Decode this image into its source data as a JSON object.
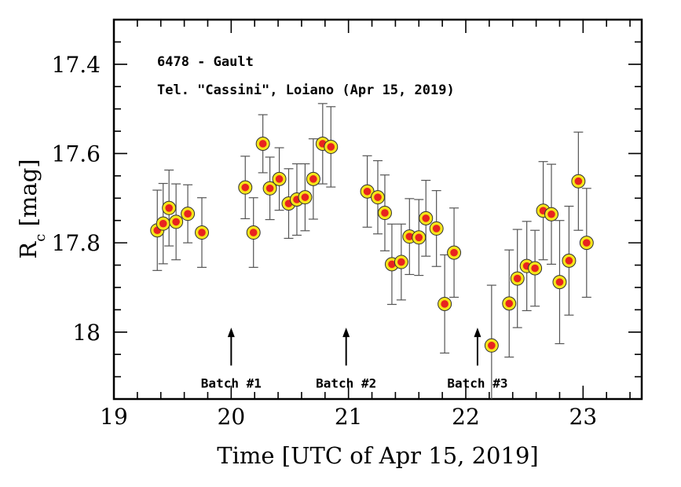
{
  "chart_data": {
    "type": "scatter",
    "title": "6478 - Gault",
    "subtitle": "Tel. \"Cassini\", Loiano (Apr 15, 2019)",
    "xlabel": "Time [UTC of Apr 15, 2019]",
    "ylabel_main": "R",
    "ylabel_sub": "c",
    "ylabel_unit": " [mag]",
    "xlim": [
      19,
      23.5
    ],
    "ylim": [
      18.15,
      17.3
    ],
    "y_inverted": true,
    "grid": false,
    "x_ticks": [
      19,
      20,
      21,
      22,
      23
    ],
    "y_ticks": [
      17.4,
      17.6,
      17.8,
      18
    ],
    "x_tick_labels": [
      "19",
      "20",
      "21",
      "22",
      "23"
    ],
    "y_tick_labels": [
      "17.4",
      "17.6",
      "17.8",
      "18"
    ],
    "marker_fill": "#e8231f",
    "marker_ring": "#f5e41a",
    "errorbar_color": "#555555",
    "points": [
      {
        "x": 19.37,
        "y": 17.772,
        "err": 0.09
      },
      {
        "x": 19.42,
        "y": 17.757,
        "err": 0.09
      },
      {
        "x": 19.47,
        "y": 17.722,
        "err": 0.085
      },
      {
        "x": 19.53,
        "y": 17.753,
        "err": 0.085
      },
      {
        "x": 19.63,
        "y": 17.735,
        "err": 0.065
      },
      {
        "x": 19.75,
        "y": 17.777,
        "err": 0.078
      },
      {
        "x": 20.12,
        "y": 17.676,
        "err": 0.07
      },
      {
        "x": 20.19,
        "y": 17.777,
        "err": 0.078
      },
      {
        "x": 20.27,
        "y": 17.578,
        "err": 0.065
      },
      {
        "x": 20.33,
        "y": 17.678,
        "err": 0.07
      },
      {
        "x": 20.41,
        "y": 17.657,
        "err": 0.07
      },
      {
        "x": 20.49,
        "y": 17.712,
        "err": 0.078
      },
      {
        "x": 20.56,
        "y": 17.703,
        "err": 0.08
      },
      {
        "x": 20.63,
        "y": 17.698,
        "err": 0.075
      },
      {
        "x": 20.7,
        "y": 17.657,
        "err": 0.09
      },
      {
        "x": 20.78,
        "y": 17.578,
        "err": 0.09
      },
      {
        "x": 20.85,
        "y": 17.585,
        "err": 0.09
      },
      {
        "x": 21.16,
        "y": 17.685,
        "err": 0.08
      },
      {
        "x": 21.25,
        "y": 17.698,
        "err": 0.082
      },
      {
        "x": 21.31,
        "y": 17.733,
        "err": 0.085
      },
      {
        "x": 21.37,
        "y": 17.848,
        "err": 0.09
      },
      {
        "x": 21.45,
        "y": 17.843,
        "err": 0.085
      },
      {
        "x": 21.52,
        "y": 17.786,
        "err": 0.085
      },
      {
        "x": 21.6,
        "y": 17.788,
        "err": 0.085
      },
      {
        "x": 21.66,
        "y": 17.745,
        "err": 0.085
      },
      {
        "x": 21.75,
        "y": 17.768,
        "err": 0.085
      },
      {
        "x": 21.82,
        "y": 17.937,
        "err": 0.11
      },
      {
        "x": 21.9,
        "y": 17.822,
        "err": 0.1
      },
      {
        "x": 22.22,
        "y": 18.03,
        "err": 0.135
      },
      {
        "x": 22.37,
        "y": 17.936,
        "err": 0.12
      },
      {
        "x": 22.44,
        "y": 17.88,
        "err": 0.11
      },
      {
        "x": 22.52,
        "y": 17.852,
        "err": 0.1
      },
      {
        "x": 22.59,
        "y": 17.857,
        "err": 0.085
      },
      {
        "x": 22.66,
        "y": 17.728,
        "err": 0.11
      },
      {
        "x": 22.73,
        "y": 17.736,
        "err": 0.112
      },
      {
        "x": 22.8,
        "y": 17.888,
        "err": 0.138
      },
      {
        "x": 22.88,
        "y": 17.84,
        "err": 0.122
      },
      {
        "x": 22.96,
        "y": 17.662,
        "err": 0.11
      },
      {
        "x": 23.03,
        "y": 17.8,
        "err": 0.122
      }
    ],
    "annotations": [
      {
        "label": "Batch #1",
        "x": 20.0,
        "arrow_tip_y": 17.99,
        "arrow_base_y": 18.075
      },
      {
        "label": "Batch #2",
        "x": 20.98,
        "arrow_tip_y": 17.99,
        "arrow_base_y": 18.075
      },
      {
        "label": "Batch #3",
        "x": 22.1,
        "arrow_tip_y": 17.99,
        "arrow_base_y": 18.075
      }
    ]
  }
}
